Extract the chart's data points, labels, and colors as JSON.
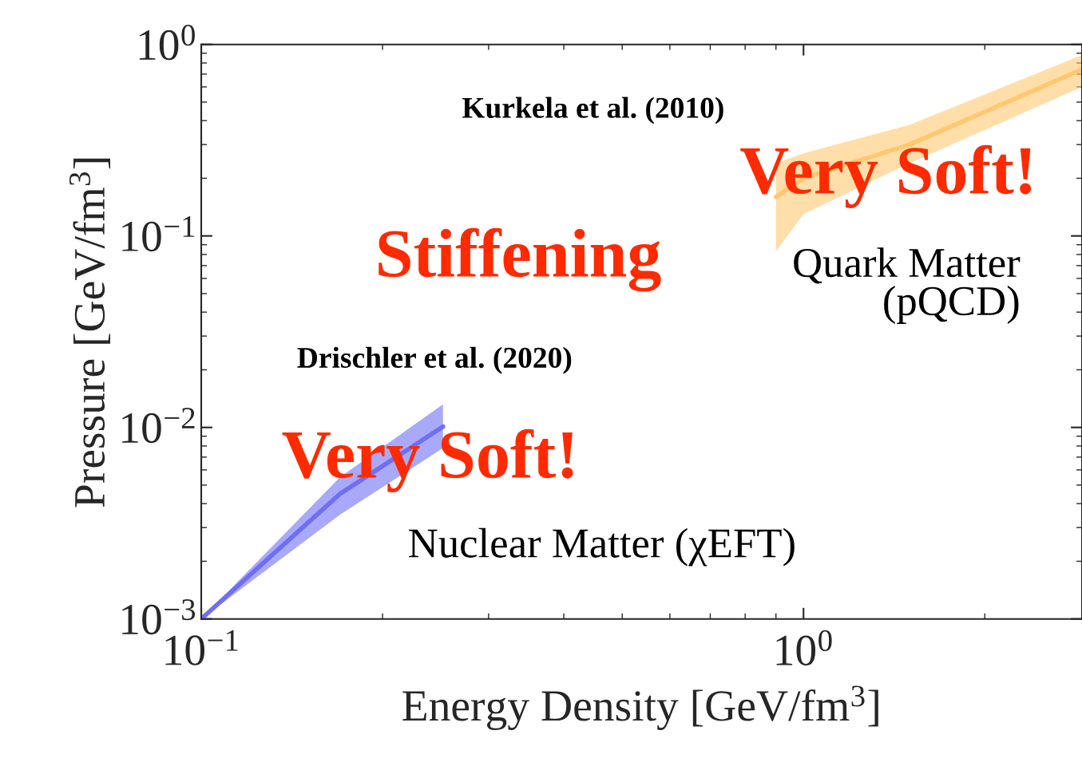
{
  "chart_data": {
    "type": "line",
    "xlabel": "Energy Density [GeV/fm$^{3}$]",
    "ylabel": "Pressure [GeV/fm$^{3}$]",
    "log": "xy",
    "xlim": [
      0.1,
      2.9
    ],
    "ylim": [
      0.001,
      1
    ],
    "xticks": [
      {
        "value": 0.1,
        "label": "10$^{−1}$"
      },
      {
        "value": 1,
        "label": "10$^{0}$"
      }
    ],
    "yticks": [
      {
        "value": 0.001,
        "label": "10$^{−3}$"
      },
      {
        "value": 0.01,
        "label": "10$^{−2}$"
      },
      {
        "value": 0.1,
        "label": "10$^{−1}$"
      },
      {
        "value": 1,
        "label": "10$^{0}$"
      }
    ],
    "grid": false,
    "series": [
      {
        "color": "#6f6ff5",
        "x": [
          0.1,
          0.17,
          0.252
        ],
        "values": [
          0.001,
          0.0045,
          0.0101
        ],
        "lower": [
          0.001,
          0.0035,
          0.0078
        ],
        "upper": [
          0.001,
          0.0055,
          0.0132
        ]
      },
      {
        "color": "#ffc870",
        "x": [
          0.9,
          1.0,
          1.5,
          2.9
        ],
        "values": [
          0.16,
          0.2,
          0.3,
          0.74
        ],
        "lower": [
          0.083,
          0.13,
          0.24,
          0.6
        ],
        "upper": [
          0.24,
          0.27,
          0.38,
          0.88
        ]
      }
    ],
    "annotations": [
      "Kurkela et al. (2010)",
      "Very Soft!",
      "Stiffening",
      "Quark Matter\n(pQCD)",
      "Drischler et al. (2020)",
      {
        "text": "Very Soft!",
        "x": 0.24,
        "y": 0.0067
      },
      "Nuclear Matter (χEFT)"
    ]
  }
}
